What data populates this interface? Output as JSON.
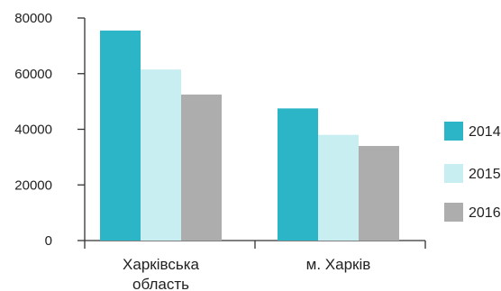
{
  "chart_data": {
    "type": "bar",
    "categories": [
      [
        "Харківська",
        "область"
      ],
      [
        "м. Харків"
      ]
    ],
    "series": [
      {
        "name": "2014",
        "color": "#2bb5c7",
        "values": [
          75500,
          47500
        ]
      },
      {
        "name": "2015",
        "color": "#c8eef1",
        "values": [
          61500,
          38000
        ]
      },
      {
        "name": "2016",
        "color": "#adadad",
        "values": [
          52500,
          34000
        ]
      }
    ],
    "yticks": [
      "0",
      "20000",
      "40000",
      "60000",
      "80000"
    ],
    "ylim": [
      0,
      80000
    ],
    "grid": false,
    "legend": "right"
  }
}
